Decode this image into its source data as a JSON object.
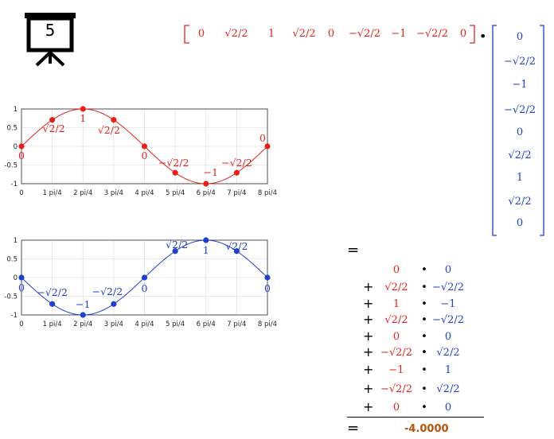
{
  "slide_number": "5",
  "row_vector": [
    "0",
    "√2/2",
    "1",
    "√2/2",
    "0",
    "−√2/2",
    "−1",
    "−√2/2",
    "0"
  ],
  "col_vector": [
    "0",
    "−√2/2",
    "−1",
    "−√2/2",
    "0",
    "√2/2",
    "1",
    "√2/2",
    "0"
  ],
  "dot_symbol": "•",
  "equals": "=",
  "plus": "+",
  "product_rows": [
    {
      "a": "0",
      "b": "0"
    },
    {
      "a": "√2/2",
      "b": "−√2/2"
    },
    {
      "a": "1",
      "b": "−1"
    },
    {
      "a": "√2/2",
      "b": "−√2/2"
    },
    {
      "a": "0",
      "b": "0"
    },
    {
      "a": "−√2/2",
      "b": "√2/2"
    },
    {
      "a": "−1",
      "b": "1"
    },
    {
      "a": "−√2/2",
      "b": "√2/2"
    },
    {
      "a": "0",
      "b": "0"
    }
  ],
  "result": "-4.0000",
  "colors": {
    "red": "#e8201c",
    "blue": "#1f3fcf",
    "orange": "#b8530a"
  },
  "chart_data": [
    {
      "type": "line",
      "name": "sin",
      "color": "#e8201c",
      "x": [
        0,
        1,
        2,
        3,
        4,
        5,
        6,
        7,
        8
      ],
      "y": [
        0,
        0.7071,
        1,
        0.7071,
        0,
        -0.7071,
        -1,
        -0.7071,
        0
      ],
      "xticks": [
        "0",
        "1 pi/4",
        "2 pi/4",
        "3 pi/4",
        "4 pi/4",
        "5 pi/4",
        "6 pi/4",
        "7 pi/4",
        "8 pi/4"
      ],
      "yticks": [
        "1",
        "0.5",
        "0",
        "-0.5",
        "-1"
      ],
      "ylim": [
        -1,
        1
      ],
      "point_labels": [
        "0",
        "√2/2",
        "1",
        "√2/2",
        "0",
        "−√2/2",
        "−1",
        "−√2/2",
        "0"
      ],
      "grid": true
    },
    {
      "type": "line",
      "name": "-sin",
      "color": "#1f3fcf",
      "x": [
        0,
        1,
        2,
        3,
        4,
        5,
        6,
        7,
        8
      ],
      "y": [
        0,
        -0.7071,
        -1,
        -0.7071,
        0,
        0.7071,
        1,
        0.7071,
        0
      ],
      "xticks": [
        "0",
        "1 pi/4",
        "2 pi/4",
        "3 pi/4",
        "4 pi/4",
        "5 pi/4",
        "6 pi/4",
        "7 pi/4",
        "8 pi/4"
      ],
      "yticks": [
        "1",
        "0.5",
        "0",
        "-0.5",
        "-1"
      ],
      "ylim": [
        -1,
        1
      ],
      "point_labels": [
        "0",
        "−√2/2",
        "−1",
        "−√2/2",
        "0",
        "√2/2",
        "1",
        "√2/2",
        "0"
      ],
      "grid": true
    }
  ]
}
